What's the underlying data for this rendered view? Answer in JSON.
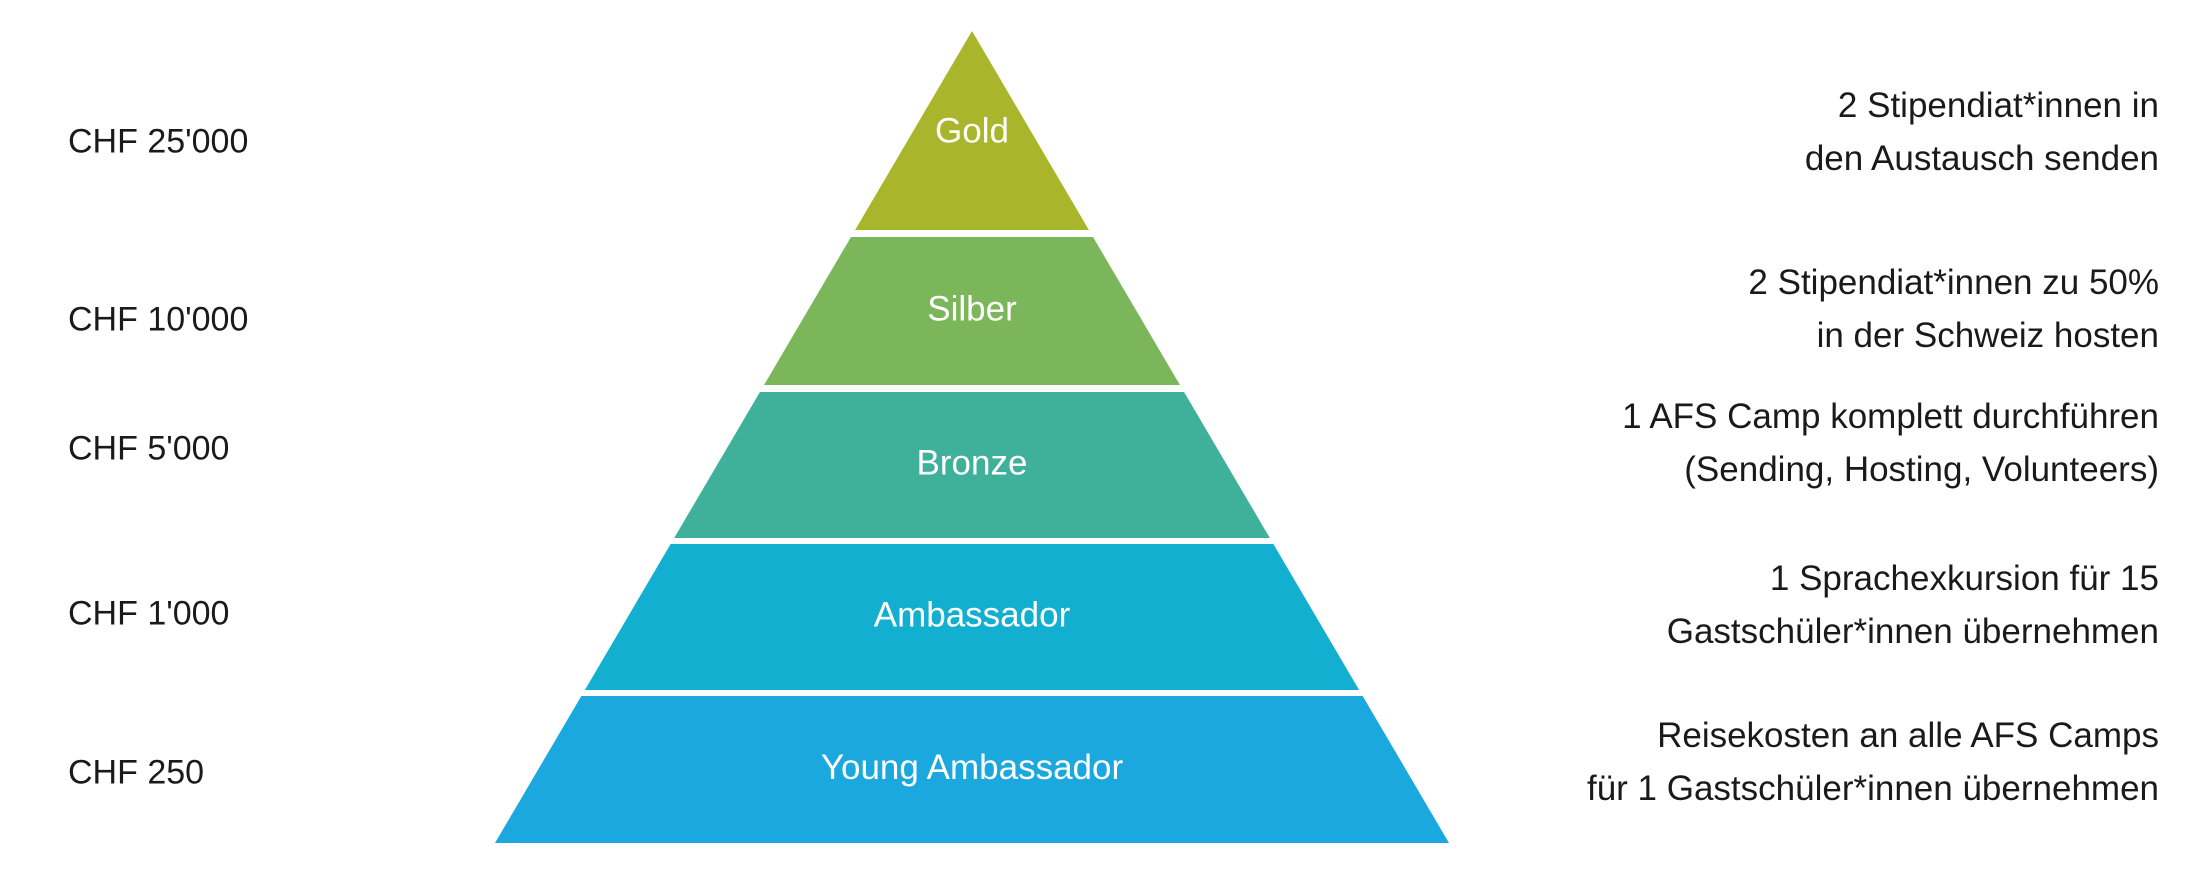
{
  "tiers": [
    {
      "name": "Gold",
      "amount": "CHF 25'000",
      "color": "#a9b52a",
      "description": [
        "2 Stipendiat*innen in",
        "den Austausch senden"
      ]
    },
    {
      "name": "Silber",
      "amount": "CHF 10'000",
      "color": "#7cb65a",
      "description": [
        "2 Stipendiat*innen zu 50%",
        "in der Schweiz hosten"
      ]
    },
    {
      "name": "Bronze",
      "amount": "CHF 5'000",
      "color": "#3fb09a",
      "description": [
        "1 AFS Camp komplett durchführen",
        "(Sending, Hosting, Volunteers)"
      ]
    },
    {
      "name": "Ambassador",
      "amount": "CHF 1'000",
      "color": "#12afd0",
      "description": [
        "1 Sprachexkursion für 15",
        "Gastschüler*innen übernehmen"
      ]
    },
    {
      "name": "Young Ambassador",
      "amount": "CHF 250",
      "color": "#1ba8de",
      "description": [
        "Reisekosten an alle AFS Camps",
        "für 1 Gastschüler*innen übernehmen"
      ]
    }
  ]
}
